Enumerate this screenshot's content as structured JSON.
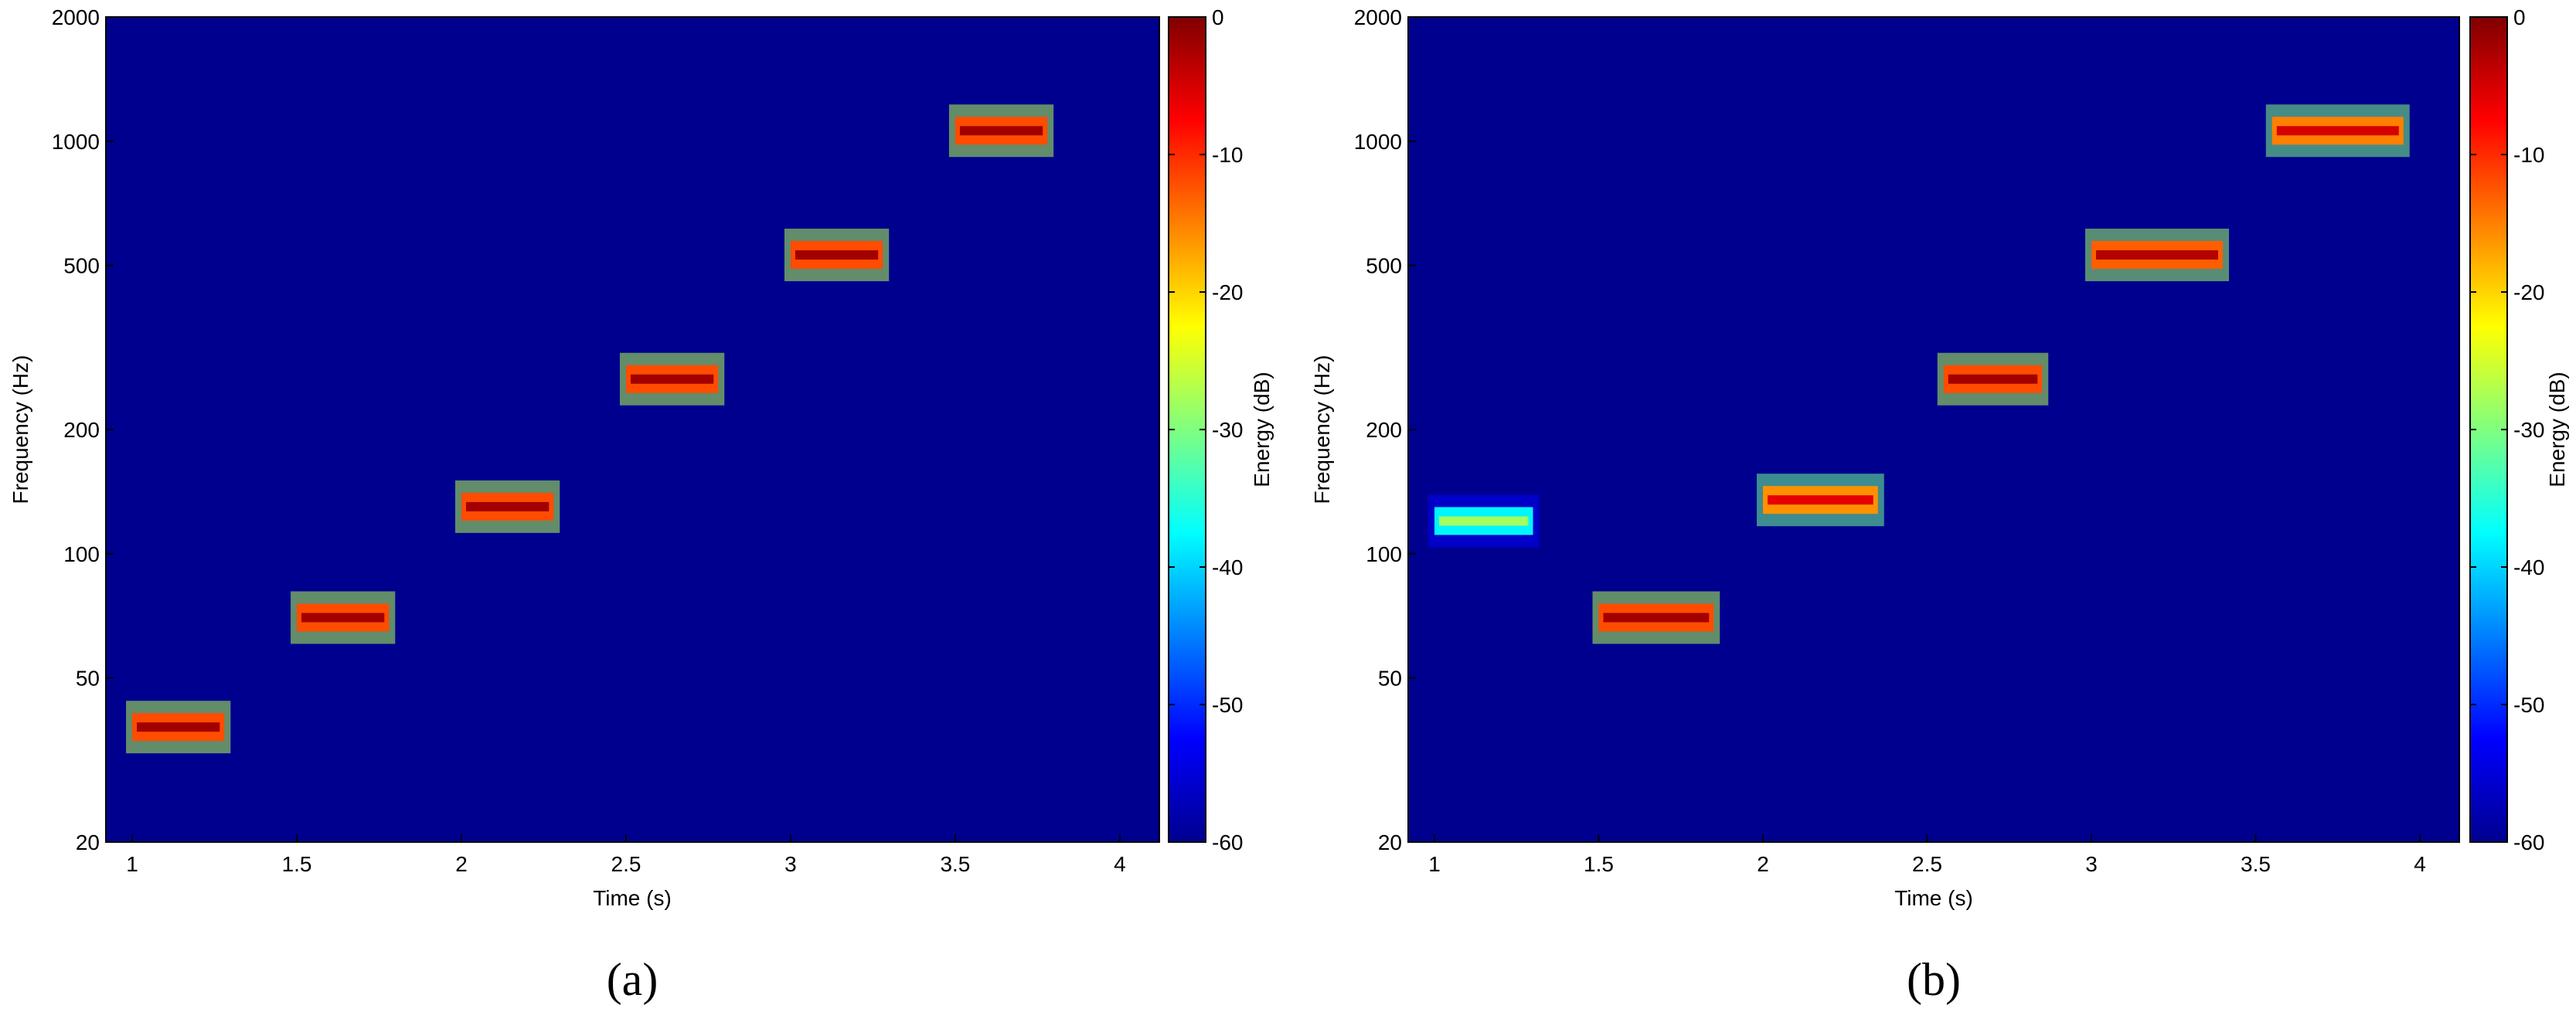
{
  "chart_data": [
    {
      "type": "heatmap",
      "panel_label": "(a)",
      "xlabel": "Time (s)",
      "ylabel": "Frequency (Hz)",
      "colorbar_label": "Energy (dB)",
      "xlim": [
        0.92,
        4.12
      ],
      "ylim": [
        20,
        2000
      ],
      "yscale": "log",
      "clim": [
        -60,
        0
      ],
      "colormap": "jet",
      "background_color": "#00008f",
      "x_ticks": [
        1,
        1.5,
        2,
        2.5,
        3,
        3.5,
        4
      ],
      "x_tick_labels": [
        "1",
        "1.5",
        "2",
        "2.5",
        "3",
        "3.5",
        "4"
      ],
      "y_ticks": [
        20,
        50,
        100,
        200,
        500,
        1000,
        2000
      ],
      "y_tick_labels": [
        "20",
        "50",
        "100",
        "200",
        "500",
        "1000",
        "2000"
      ],
      "colorbar_ticks": [
        0,
        -10,
        -20,
        -30,
        -40,
        -50,
        -60
      ],
      "colorbar_tick_labels": [
        "0",
        "-10",
        "-20",
        "-30",
        "-40",
        "-50",
        "-60"
      ],
      "tones": [
        {
          "t_start": 1.0,
          "t_end": 1.28,
          "f": 38,
          "peak_db": -2
        },
        {
          "t_start": 1.5,
          "t_end": 1.78,
          "f": 70,
          "peak_db": -2
        },
        {
          "t_start": 2.0,
          "t_end": 2.28,
          "f": 130,
          "peak_db": -2
        },
        {
          "t_start": 2.5,
          "t_end": 2.78,
          "f": 265,
          "peak_db": -2
        },
        {
          "t_start": 3.0,
          "t_end": 3.28,
          "f": 530,
          "peak_db": -2
        },
        {
          "t_start": 3.5,
          "t_end": 3.78,
          "f": 1060,
          "peak_db": -2
        }
      ]
    },
    {
      "type": "heatmap",
      "panel_label": "(b)",
      "xlabel": "Time (s)",
      "ylabel": "Frequency (Hz)",
      "colorbar_label": "Energy (dB)",
      "xlim": [
        0.92,
        4.12
      ],
      "ylim": [
        20,
        2000
      ],
      "yscale": "log",
      "clim": [
        -60,
        0
      ],
      "colormap": "jet",
      "background_color": "#00008f",
      "x_ticks": [
        1,
        1.5,
        2,
        2.5,
        3,
        3.5,
        4
      ],
      "x_tick_labels": [
        "1",
        "1.5",
        "2",
        "2.5",
        "3",
        "3.5",
        "4"
      ],
      "y_ticks": [
        20,
        50,
        100,
        200,
        500,
        1000,
        2000
      ],
      "y_tick_labels": [
        "20",
        "50",
        "100",
        "200",
        "500",
        "1000",
        "2000"
      ],
      "colorbar_ticks": [
        0,
        -10,
        -20,
        -30,
        -40,
        -50,
        -60
      ],
      "colorbar_tick_labels": [
        "0",
        "-10",
        "-20",
        "-30",
        "-40",
        "-50",
        "-60"
      ],
      "tones": [
        {
          "t_start": 1.0,
          "t_end": 1.3,
          "f": 120,
          "peak_db": -28
        },
        {
          "t_start": 1.5,
          "t_end": 1.85,
          "f": 70,
          "peak_db": -2
        },
        {
          "t_start": 2.0,
          "t_end": 2.35,
          "f": 135,
          "peak_db": -6
        },
        {
          "t_start": 2.55,
          "t_end": 2.85,
          "f": 265,
          "peak_db": -2
        },
        {
          "t_start": 3.0,
          "t_end": 3.4,
          "f": 530,
          "peak_db": -3
        },
        {
          "t_start": 3.55,
          "t_end": 3.95,
          "f": 1060,
          "peak_db": -5
        }
      ]
    }
  ]
}
